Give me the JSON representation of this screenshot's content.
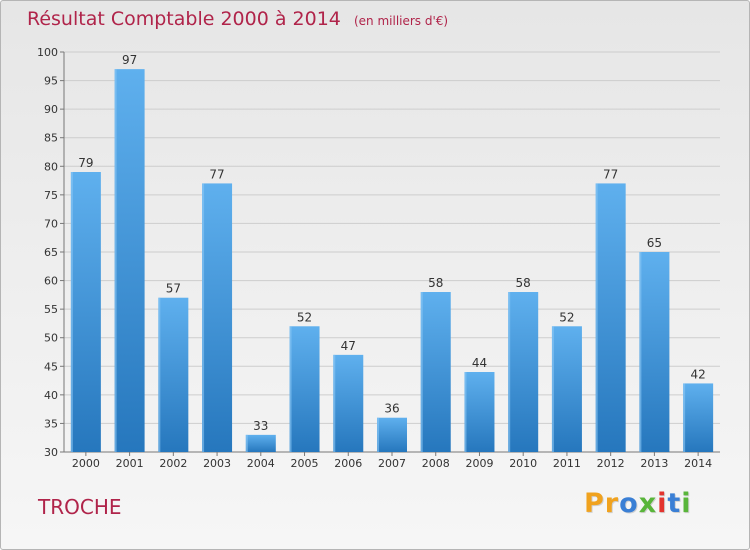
{
  "header": {
    "title": "Résultat Comptable 2000 à 2014",
    "unit": "(en milliers d'€)"
  },
  "footer": {
    "commune": "TROCHE",
    "brand_letters": [
      "P",
      "r",
      "o",
      "x",
      "i",
      "t",
      "i"
    ],
    "brand_colors": [
      "#f0a21e",
      "#f0a21e",
      "#3a7fd5",
      "#59b53a",
      "#e3342f",
      "#3a7fd5",
      "#59b53a"
    ]
  },
  "colors": {
    "bar": "#3a8fd8",
    "title": "#b0244a"
  },
  "chart_data": {
    "type": "bar",
    "categories": [
      "2000",
      "2001",
      "2002",
      "2003",
      "2004",
      "2005",
      "2006",
      "2007",
      "2008",
      "2009",
      "2010",
      "2011",
      "2012",
      "2013",
      "2014"
    ],
    "values": [
      79,
      97,
      57,
      77,
      33,
      52,
      47,
      36,
      58,
      44,
      58,
      52,
      77,
      65,
      42
    ],
    "ylim": [
      30,
      100
    ],
    "yticks": [
      30,
      35,
      40,
      45,
      50,
      55,
      60,
      65,
      70,
      75,
      80,
      85,
      90,
      95,
      100
    ],
    "grid": true,
    "legend": "none",
    "data_labels": true
  }
}
